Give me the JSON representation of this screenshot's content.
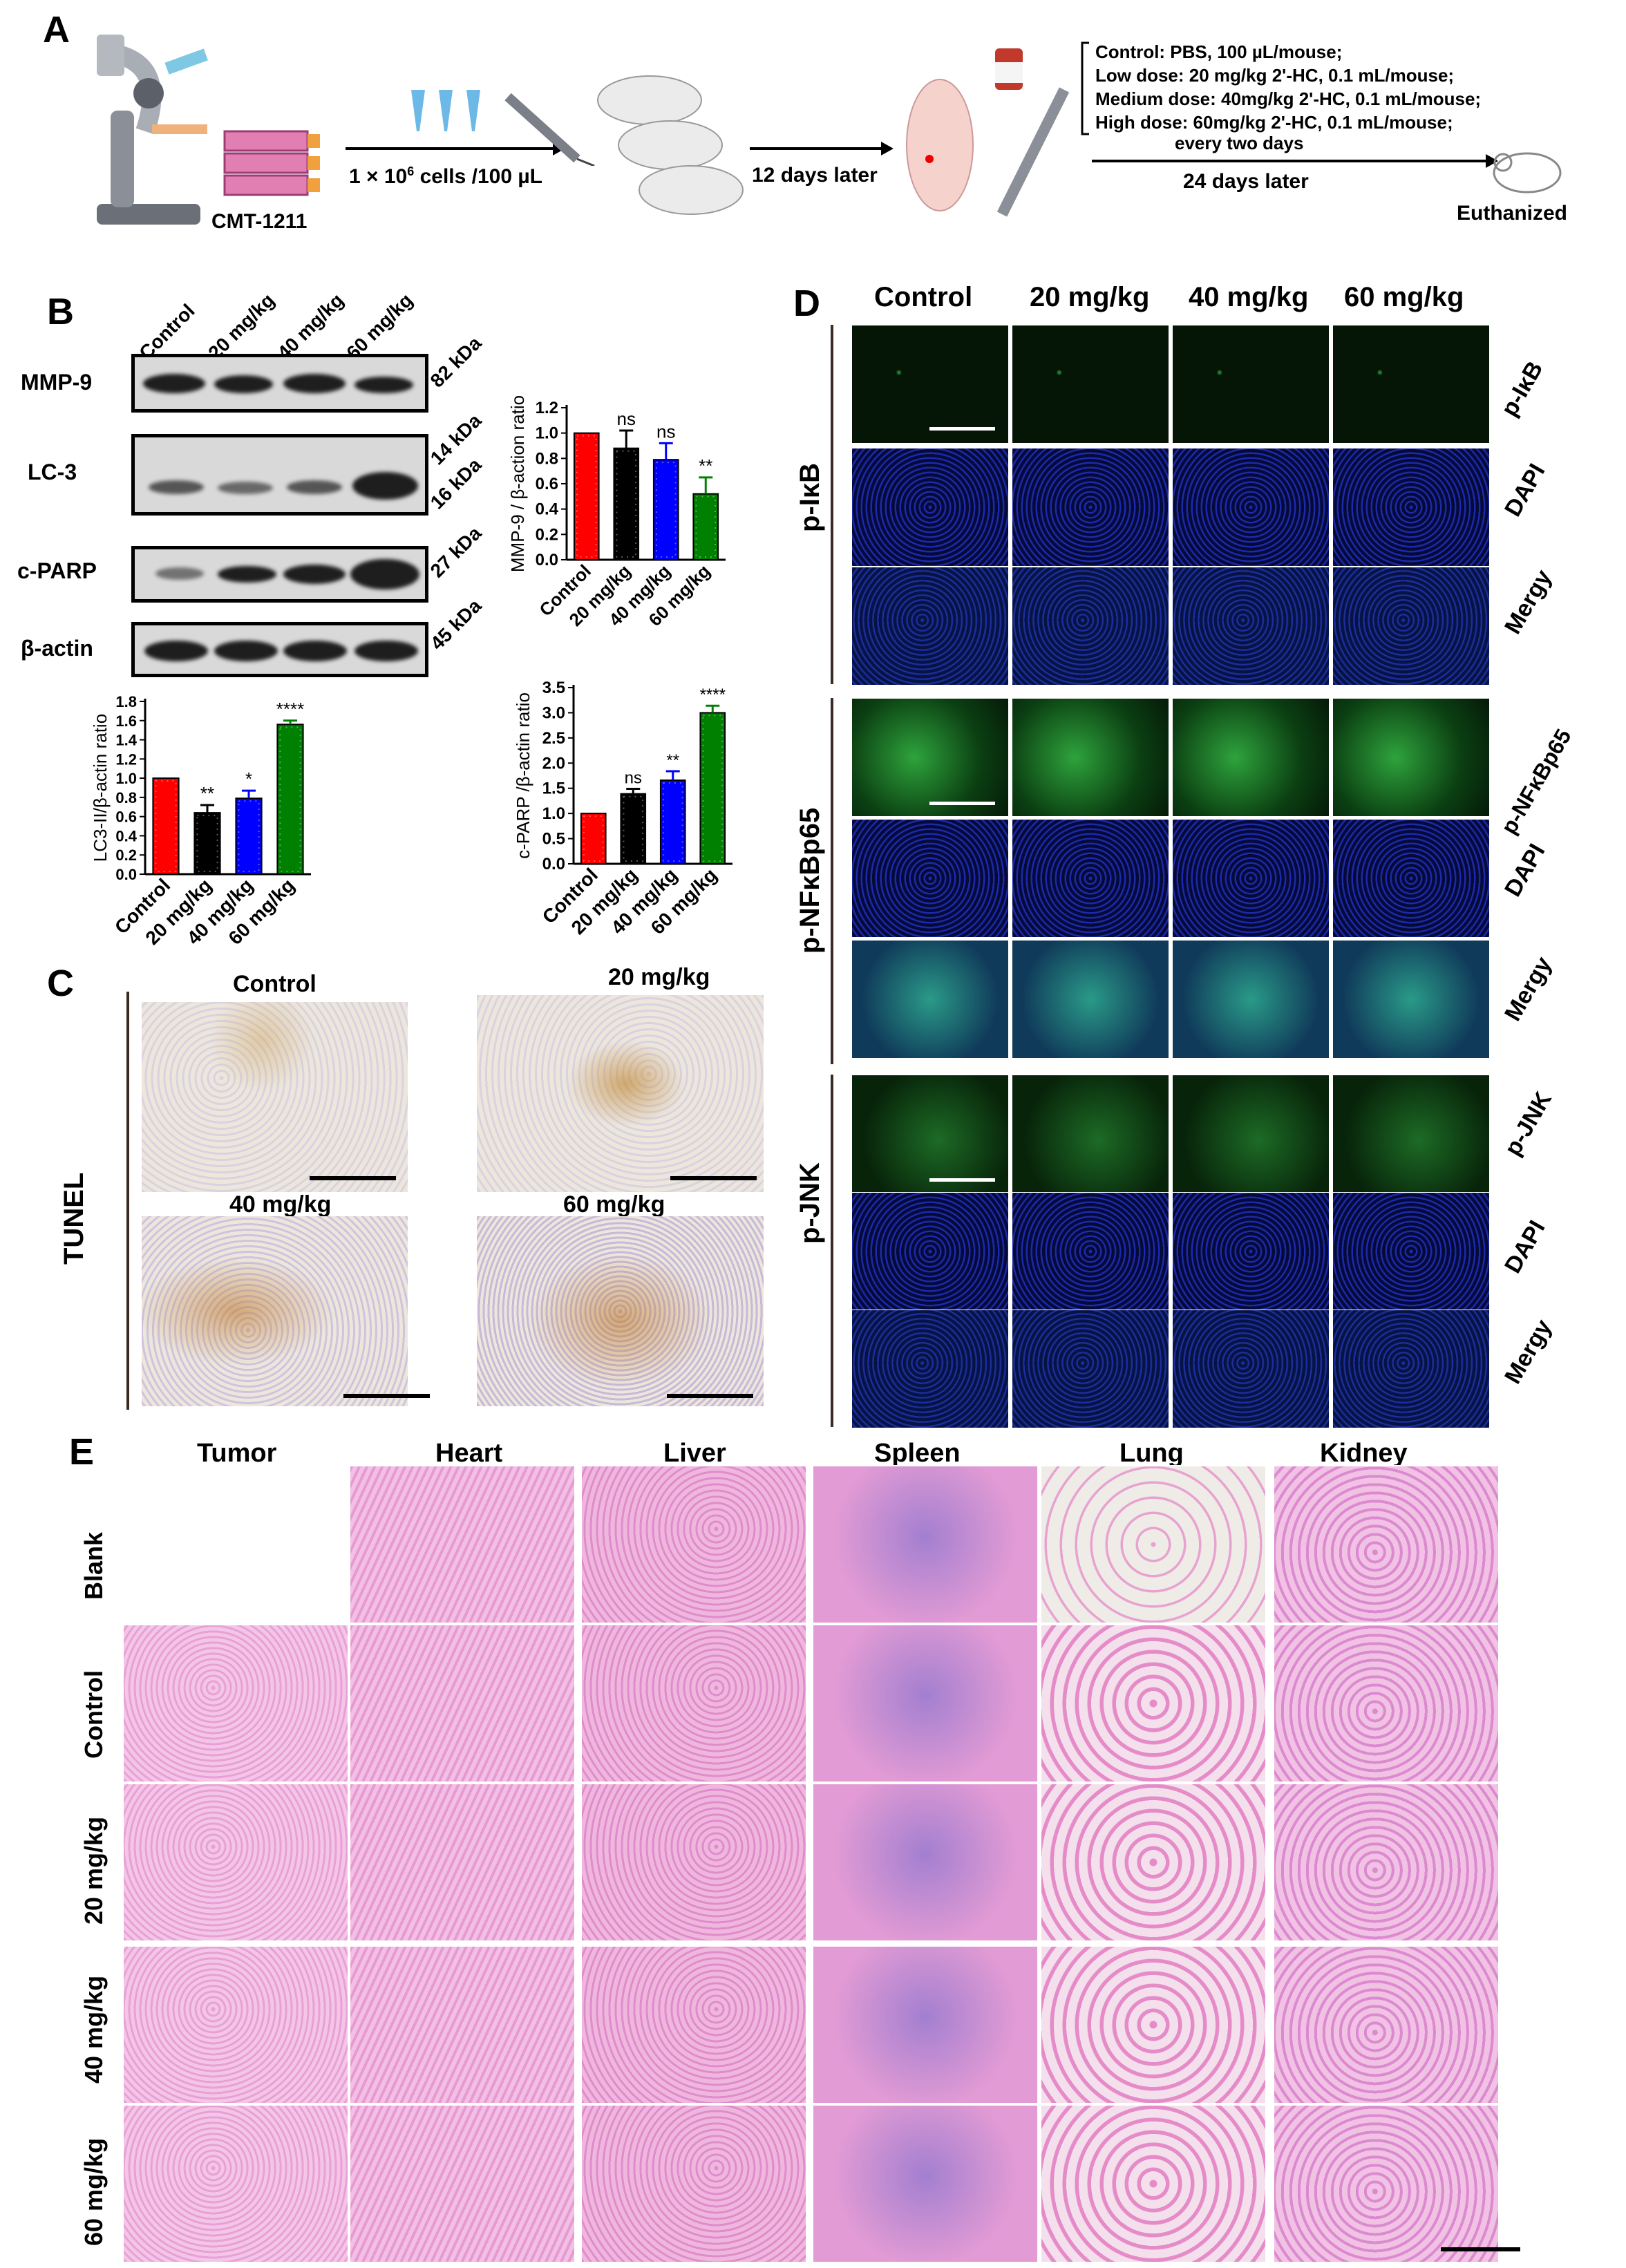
{
  "panels": {
    "a": "A",
    "b": "B",
    "c": "C",
    "d": "D",
    "e": "E"
  },
  "panelA": {
    "cell_line": "CMT-1211",
    "inject_pre": "1 × 10",
    "inject_sup": "6",
    "inject_post": " cells /100 µL",
    "days12": "12 days later",
    "doses": [
      "Control: PBS, 100 µL/mouse;",
      "Low dose: 20 mg/kg 2'-HC, 0.1 mL/mouse;",
      "Medium dose: 40mg/kg 2'-HC, 0.1 mL/mouse;",
      "High dose: 60mg/kg 2'-HC, 0.1 mL/mouse;"
    ],
    "every": "every two days",
    "days24": "24 days later",
    "end": "Euthanized"
  },
  "panelB": {
    "lanes": [
      "Control",
      "20 mg/kg",
      "40 mg/kg",
      "60 mg/kg"
    ],
    "blots": [
      {
        "label": "MMP-9",
        "kda": "82 kDa"
      },
      {
        "label": "LC-3",
        "kda": "14 kDa",
        "kda2": "16 kDa"
      },
      {
        "label": "c-PARP",
        "kda": "27 kDa"
      },
      {
        "label": "β-actin",
        "kda": "45 kDa"
      }
    ]
  },
  "chart_data": [
    {
      "type": "bar",
      "ylabel": "MMP-9 / β-action ratio",
      "categories": [
        "Control",
        "20 mg/kg",
        "40 mg/kg",
        "60 mg/kg"
      ],
      "values": [
        1.0,
        0.88,
        0.79,
        0.52
      ],
      "errors": [
        0,
        0.14,
        0.13,
        0.13
      ],
      "sig": [
        "",
        "ns",
        "ns",
        "**"
      ],
      "ylim": [
        0,
        1.2
      ],
      "yticks": [
        "0.0",
        "0.2",
        "0.4",
        "0.6",
        "0.8",
        "1.0",
        "1.2"
      ],
      "colors": [
        "#ff0000",
        "#000000",
        "#0000ff",
        "#008000"
      ]
    },
    {
      "type": "bar",
      "ylabel": "LC3-II/β-actin ratio",
      "categories": [
        "Control",
        "20 mg/kg",
        "40 mg/kg",
        "60 mg/kg"
      ],
      "values": [
        1.0,
        0.64,
        0.79,
        1.56
      ],
      "errors": [
        0,
        0.08,
        0.08,
        0.04
      ],
      "sig": [
        "",
        "**",
        "*",
        "****"
      ],
      "ylim": [
        0,
        1.8
      ],
      "yticks": [
        "0.0",
        "0.2",
        "0.4",
        "0.6",
        "0.8",
        "1.0",
        "1.2",
        "1.4",
        "1.6",
        "1.8"
      ],
      "colors": [
        "#ff0000",
        "#000000",
        "#0000ff",
        "#008000"
      ]
    },
    {
      "type": "bar",
      "ylabel": "c-PARP /β-actin ratio",
      "categories": [
        "Control",
        "20 mg/kg",
        "40 mg/kg",
        "60 mg/kg"
      ],
      "values": [
        1.0,
        1.39,
        1.66,
        3.0
      ],
      "errors": [
        0,
        0.1,
        0.18,
        0.14
      ],
      "sig": [
        "",
        "ns",
        "**",
        "****"
      ],
      "ylim": [
        0,
        3.5
      ],
      "yticks": [
        "0.0",
        "0.5",
        "1.0",
        "1.5",
        "2.0",
        "2.5",
        "3.0",
        "3.5"
      ],
      "colors": [
        "#ff0000",
        "#000000",
        "#0000ff",
        "#008000"
      ]
    }
  ],
  "panelC": {
    "side": "TUNEL",
    "titles": [
      "Control",
      "20 mg/kg",
      "40 mg/kg",
      "60 mg/kg"
    ]
  },
  "panelD": {
    "cols": [
      "Control",
      "20 mg/kg",
      "40 mg/kg",
      "60 mg/kg"
    ],
    "groups": [
      {
        "name": "p-IκB",
        "rows": [
          "p-IκB",
          "DAPI",
          "Mergy"
        ]
      },
      {
        "name": "p-NFκBp65",
        "rows": [
          "p-NFκBp65",
          "DAPI",
          "Mergy"
        ]
      },
      {
        "name": "p-JNK",
        "rows": [
          "p-JNK",
          "DAPI",
          "Mergy"
        ]
      }
    ]
  },
  "panelE": {
    "cols": [
      "Tumor",
      "Heart",
      "Liver",
      "Spleen",
      "Lung",
      "Kidney"
    ],
    "rows": [
      "Blank",
      "Control",
      "20 mg/kg",
      "40 mg/kg",
      "60 mg/kg"
    ]
  }
}
